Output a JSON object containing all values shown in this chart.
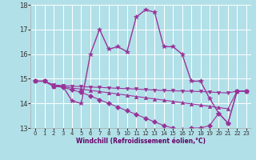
{
  "xlabel": "Windchill (Refroidissement éolien,°C)",
  "xlim": [
    -0.5,
    23.5
  ],
  "ylim": [
    13,
    18
  ],
  "yticks": [
    13,
    14,
    15,
    16,
    17,
    18
  ],
  "xticks": [
    0,
    1,
    2,
    3,
    4,
    5,
    6,
    7,
    8,
    9,
    10,
    11,
    12,
    13,
    14,
    15,
    16,
    17,
    18,
    19,
    20,
    21,
    22,
    23
  ],
  "bg_color": "#b2e0e8",
  "grid_color": "#ffffff",
  "line_color": "#993399",
  "lines": [
    {
      "x": [
        0,
        1,
        2,
        3,
        4,
        5,
        6,
        7,
        8,
        9,
        10,
        11,
        12,
        13,
        14,
        15,
        16,
        17,
        18,
        19,
        20,
        21,
        22,
        23
      ],
      "y": [
        14.9,
        14.9,
        14.7,
        14.7,
        14.1,
        14.0,
        16.0,
        17.0,
        16.2,
        16.3,
        16.1,
        17.5,
        17.8,
        17.7,
        16.3,
        16.3,
        16.0,
        14.9,
        14.9,
        14.2,
        13.6,
        13.2,
        14.5,
        14.5
      ]
    },
    {
      "x": [
        0,
        1,
        2,
        3,
        4,
        5,
        6,
        7,
        8,
        9,
        10,
        11,
        12,
        13,
        14,
        15,
        16,
        17,
        18,
        19,
        20,
        21,
        22,
        23
      ],
      "y": [
        14.9,
        14.9,
        14.75,
        14.72,
        14.7,
        14.68,
        14.66,
        14.65,
        14.63,
        14.61,
        14.6,
        14.58,
        14.56,
        14.54,
        14.52,
        14.51,
        14.5,
        14.49,
        14.48,
        14.46,
        14.44,
        14.42,
        14.5,
        14.5
      ]
    },
    {
      "x": [
        0,
        1,
        2,
        3,
        4,
        5,
        6,
        7,
        8,
        9,
        10,
        11,
        12,
        13,
        14,
        15,
        16,
        17,
        18,
        19,
        20,
        21,
        22,
        23
      ],
      "y": [
        14.9,
        14.9,
        14.7,
        14.68,
        14.62,
        14.58,
        14.53,
        14.48,
        14.43,
        14.38,
        14.33,
        14.28,
        14.23,
        14.18,
        14.13,
        14.08,
        14.03,
        13.98,
        13.93,
        13.88,
        13.83,
        13.78,
        14.5,
        14.5
      ]
    },
    {
      "x": [
        0,
        1,
        2,
        3,
        4,
        5,
        6,
        7,
        8,
        9,
        10,
        11,
        12,
        13,
        14,
        15,
        16,
        17,
        18,
        19,
        20,
        21,
        22,
        23
      ],
      "y": [
        14.9,
        14.9,
        14.7,
        14.65,
        14.55,
        14.45,
        14.3,
        14.15,
        14.0,
        13.85,
        13.7,
        13.55,
        13.4,
        13.25,
        13.1,
        13.0,
        12.95,
        13.0,
        13.0,
        13.1,
        13.6,
        13.2,
        14.5,
        14.5
      ]
    }
  ]
}
